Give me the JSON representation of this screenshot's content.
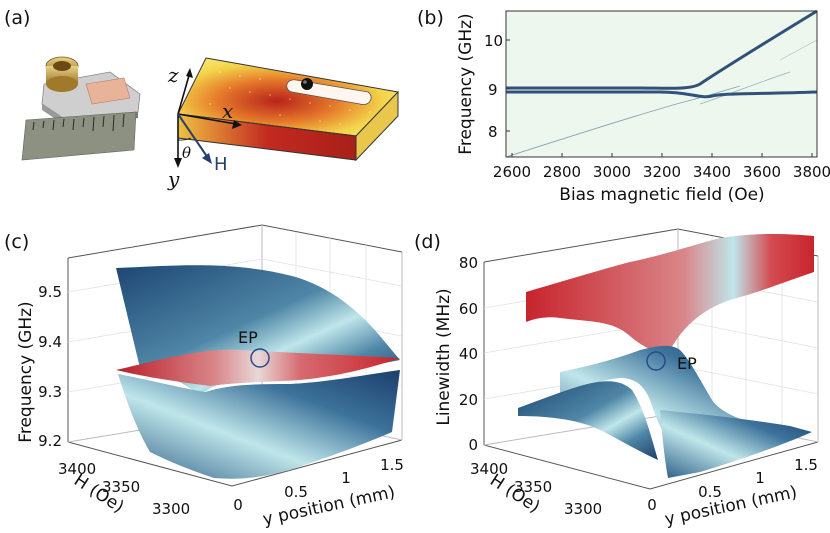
{
  "panels": {
    "a": {
      "label": "(a)",
      "axes": {
        "z": "z",
        "x": "x",
        "y": "y",
        "theta": "θ",
        "H": "H"
      }
    },
    "b": {
      "label": "(b)",
      "ylabel": "Frequency  (GHz)",
      "xlabel": "Bias magnetic field (Oe)",
      "yticks": [
        "10",
        "9",
        "8"
      ],
      "xticks": [
        "2600",
        "2800",
        "3000",
        "3200",
        "3400",
        "3600",
        "3800"
      ]
    },
    "c": {
      "label": "(c)",
      "zlabel": "Frequency  (GHz)",
      "zticks": [
        "9.5",
        "9.4",
        "9.3",
        "9.2"
      ],
      "hlabel": "H (Oe)",
      "hticks": [
        "3400",
        "3350",
        "3300"
      ],
      "ylabel": "y position (mm)",
      "yticks": [
        "0",
        "0.5",
        "1",
        "1.5"
      ],
      "ep_label": "EP"
    },
    "d": {
      "label": "(d)",
      "zlabel": "Linewidth (MHz)",
      "zticks": [
        "80",
        "60",
        "40",
        "20",
        "0"
      ],
      "hlabel": "H (Oe)",
      "hticks": [
        "3400",
        "3350",
        "3300"
      ],
      "ylabel": "y position (mm)",
      "yticks": [
        "0",
        "0.5",
        "1",
        "1.5"
      ],
      "ep_label": "EP"
    }
  },
  "colors": {
    "navy": "#1b3f6b",
    "red": "#c8242c",
    "light": "#bfe6ea",
    "ep_circle": "#2a4a8a"
  }
}
